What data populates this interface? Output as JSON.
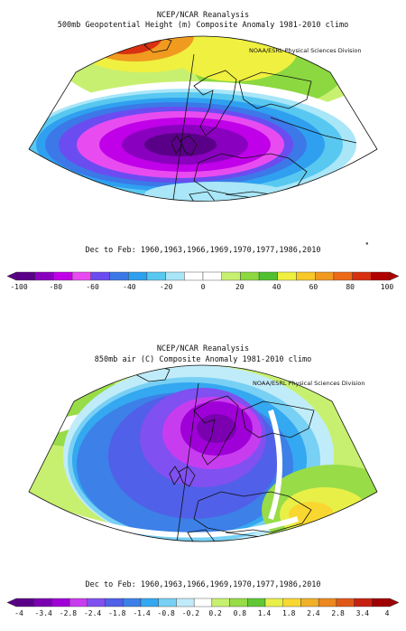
{
  "panels": [
    {
      "title": "NCEP/NCAR Reanalysis",
      "subtitle": "500mb Geopotential Height (m) Composite Anomaly 1981-2010 climo",
      "credit": "NOAA/ESRL Physical Sciences Division",
      "dates": "Dec to Feb: 1960,1963,1966,1969,1970,1977,1986,2010",
      "colorbar_ticks": [
        "-100",
        "-80",
        "-60",
        "-40",
        "-20",
        "0",
        "20",
        "40",
        "60",
        "80",
        "100"
      ],
      "colorbar_colors": [
        "#5a0088",
        "#8a00bf",
        "#c000e8",
        "#e84cf0",
        "#6b4cf0",
        "#3c78e8",
        "#2fa0f0",
        "#58c8f0",
        "#a8e6f8",
        "#ffffff",
        "#ffffff",
        "#c8f070",
        "#8cd840",
        "#50c030",
        "#f0f040",
        "#f8c828",
        "#f09a20",
        "#ec6a18",
        "#d83010",
        "#b00000"
      ]
    },
    {
      "title": "NCEP/NCAR Reanalysis",
      "subtitle": "850mb air (C) Composite Anomaly 1981-2010 climo",
      "credit": "NOAA/ESRL Physical Sciences Division",
      "dates": "Dec to Feb: 1960,1963,1966,1969,1970,1977,1986,2010",
      "colorbar_ticks": [
        "-4",
        "-3.4",
        "-2.8",
        "-2.4",
        "-1.8",
        "-1.4",
        "-0.8",
        "-0.2",
        "0.2",
        "0.8",
        "1.4",
        "1.8",
        "2.4",
        "2.8",
        "3.4",
        "4"
      ],
      "colorbar_colors": [
        "#5a0088",
        "#7a00b0",
        "#a000d8",
        "#c83cf0",
        "#8050f0",
        "#5060e8",
        "#3c80e8",
        "#34a8f0",
        "#78d0f4",
        "#c0ecfa",
        "#ffffff",
        "#c8f070",
        "#98dc48",
        "#60c834",
        "#e8f048",
        "#f8d830",
        "#f0b028",
        "#ec8820",
        "#e05818",
        "#c82010",
        "#a00000"
      ]
    }
  ]
}
